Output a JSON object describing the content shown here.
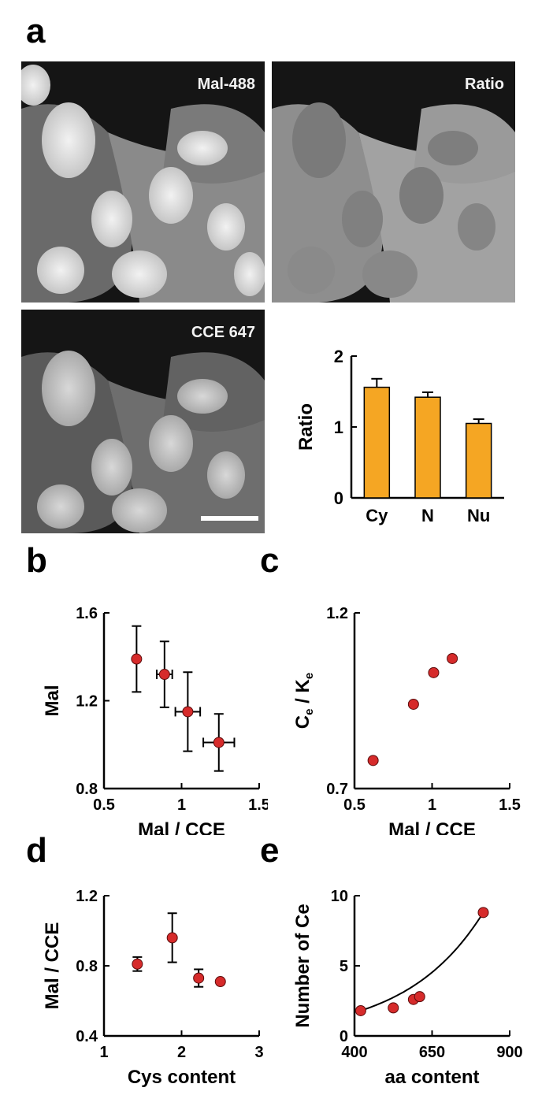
{
  "figure": {
    "panel_a": {
      "letter": "a",
      "images": [
        {
          "label": "Mal-488"
        },
        {
          "label": "Ratio"
        },
        {
          "label": "CCE 647"
        }
      ]
    },
    "panel_b": {
      "letter": "b"
    },
    "panel_c": {
      "letter": "c"
    },
    "panel_d": {
      "letter": "d"
    },
    "panel_e": {
      "letter": "e"
    }
  },
  "chart_data": [
    {
      "id": "a-bar",
      "type": "bar",
      "categories": [
        "Cy",
        "N",
        "Nu"
      ],
      "values": [
        1.56,
        1.42,
        1.05
      ],
      "errors": [
        0.12,
        0.07,
        0.06
      ],
      "ylabel": "Ratio",
      "xlabel": "",
      "ylim": [
        0,
        2
      ],
      "yticks": [
        0,
        1,
        2
      ],
      "color": "#f5a623"
    },
    {
      "id": "b",
      "type": "scatter",
      "xlabel": "Mal / CCE",
      "ylabel": "Mal",
      "xlim": [
        0.5,
        1.5
      ],
      "ylim": [
        0.8,
        1.6
      ],
      "xticks": [
        0.5,
        1,
        1.5
      ],
      "xtick_labels": [
        "0.5",
        "1",
        "1.5"
      ],
      "yticks": [
        0.8,
        1.2,
        1.6
      ],
      "ytick_labels": [
        "0.8",
        "1.2",
        "1.6"
      ],
      "points": [
        {
          "x": 0.71,
          "y": 1.39,
          "xerr": 0.0,
          "yerr": 0.15
        },
        {
          "x": 0.89,
          "y": 1.32,
          "xerr": 0.05,
          "yerr": 0.15
        },
        {
          "x": 1.04,
          "y": 1.15,
          "xerr": 0.08,
          "yerr": 0.18
        },
        {
          "x": 1.24,
          "y": 1.01,
          "xerr": 0.1,
          "yerr": 0.13
        }
      ],
      "color": "#d62b2b"
    },
    {
      "id": "c",
      "type": "scatter",
      "xlabel": "Mal / CCE",
      "ylabel": "Ce / Ke",
      "xlim": [
        0.5,
        1.5
      ],
      "ylim": [
        0.7,
        1.2
      ],
      "xticks": [
        0.5,
        1,
        1.5
      ],
      "xtick_labels": [
        "0.5",
        "1",
        "1.5"
      ],
      "yticks": [
        0.7,
        1.2
      ],
      "ytick_labels": [
        "0.7",
        "1.2"
      ],
      "points": [
        {
          "x": 0.62,
          "y": 0.78
        },
        {
          "x": 0.88,
          "y": 0.94
        },
        {
          "x": 1.01,
          "y": 1.03
        },
        {
          "x": 1.13,
          "y": 1.07
        }
      ],
      "color": "#d62b2b"
    },
    {
      "id": "d",
      "type": "scatter",
      "xlabel": "Cys content",
      "ylabel": "Mal / CCE",
      "xlim": [
        1,
        3
      ],
      "ylim": [
        0.4,
        1.2
      ],
      "xticks": [
        1,
        2,
        3
      ],
      "xtick_labels": [
        "1",
        "2",
        "3"
      ],
      "yticks": [
        0.4,
        0.8,
        1.2
      ],
      "ytick_labels": [
        "0.4",
        "0.8",
        "1.2"
      ],
      "points": [
        {
          "x": 1.43,
          "y": 0.81,
          "yerr": 0.04
        },
        {
          "x": 1.88,
          "y": 0.96,
          "yerr": 0.14
        },
        {
          "x": 2.22,
          "y": 0.73,
          "yerr": 0.05
        },
        {
          "x": 2.5,
          "y": 0.71,
          "yerr": 0.0
        }
      ],
      "color": "#d62b2b"
    },
    {
      "id": "e",
      "type": "scatter",
      "xlabel": "aa content",
      "ylabel": "Number of Ce",
      "xlim": [
        400,
        900
      ],
      "ylim": [
        0,
        10
      ],
      "xticks": [
        400,
        650,
        900
      ],
      "xtick_labels": [
        "400",
        "650",
        "900"
      ],
      "yticks": [
        0,
        5,
        10
      ],
      "ytick_labels": [
        "0",
        "5",
        "10"
      ],
      "points": [
        {
          "x": 420,
          "y": 1.8
        },
        {
          "x": 525,
          "y": 2.0
        },
        {
          "x": 590,
          "y": 2.6
        },
        {
          "x": 610,
          "y": 2.8
        },
        {
          "x": 815,
          "y": 8.8
        }
      ],
      "fit": {
        "type": "exponential",
        "x_from": 420,
        "x_to": 815
      },
      "color": "#d62b2b"
    }
  ]
}
